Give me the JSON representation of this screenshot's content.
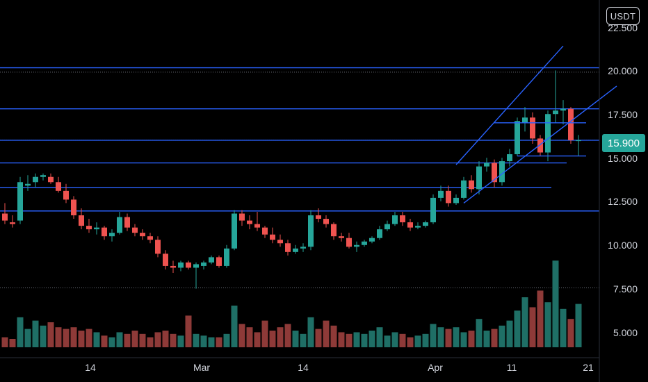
{
  "currency": "USDT",
  "last_price": "15.900",
  "colors": {
    "background": "#000000",
    "up": "#26a69a",
    "down": "#ef5350",
    "vol_up": "#1f6f66",
    "vol_down": "#8e3a38",
    "drawing": "#2962ff",
    "grid_dotted": "#6a6d78",
    "price_tag": "#26a69a",
    "axis_text": "#d1d4dc"
  },
  "chart_data": {
    "type": "candlestick",
    "y_ticks": [
      "5.000",
      "7.500",
      "10.000",
      "12.500",
      "15.000",
      "17.500",
      "20.000",
      "22.500"
    ],
    "x_ticks": [
      "14",
      "Mar",
      "14",
      "Apr",
      "11",
      "21"
    ],
    "ylim": [
      4.0,
      23.2
    ],
    "last_price": 15.9,
    "horizontal_levels": [
      20.05,
      17.7,
      15.9,
      14.6,
      13.2,
      11.85
    ],
    "dotted_levels": [
      19.8,
      15.9,
      11.85,
      7.45
    ],
    "bars": [
      {
        "date": "Jan 31",
        "o": 11.7,
        "h": 12.3,
        "l": 11.1,
        "c": 11.3,
        "v": 0.6
      },
      {
        "date": "Feb 1",
        "o": 11.2,
        "h": 11.6,
        "l": 10.9,
        "c": 11.1,
        "v": 0.5
      },
      {
        "date": "Feb 2",
        "o": 11.3,
        "h": 13.8,
        "l": 11.1,
        "c": 13.5,
        "v": 1.8
      },
      {
        "date": "Feb 3",
        "o": 13.3,
        "h": 13.9,
        "l": 13.0,
        "c": 13.4,
        "v": 1.1
      },
      {
        "date": "Feb 4",
        "o": 13.5,
        "h": 14.0,
        "l": 13.2,
        "c": 13.8,
        "v": 1.6
      },
      {
        "date": "Feb 5",
        "o": 13.8,
        "h": 14.0,
        "l": 13.6,
        "c": 13.9,
        "v": 1.3
      },
      {
        "date": "Feb 6",
        "o": 13.8,
        "h": 14.0,
        "l": 13.4,
        "c": 13.5,
        "v": 1.5
      },
      {
        "date": "Feb 7",
        "o": 13.5,
        "h": 13.8,
        "l": 12.9,
        "c": 13.0,
        "v": 1.2
      },
      {
        "date": "Feb 8",
        "o": 13.0,
        "h": 13.4,
        "l": 12.3,
        "c": 12.5,
        "v": 1.1
      },
      {
        "date": "Feb 9",
        "o": 12.5,
        "h": 12.7,
        "l": 11.4,
        "c": 11.6,
        "v": 1.2
      },
      {
        "date": "Feb 10",
        "o": 11.6,
        "h": 12.0,
        "l": 10.8,
        "c": 11.0,
        "v": 1.0
      },
      {
        "date": "Feb 11",
        "o": 11.0,
        "h": 11.4,
        "l": 10.6,
        "c": 10.8,
        "v": 1.1
      },
      {
        "date": "Feb 12",
        "o": 10.8,
        "h": 11.2,
        "l": 10.5,
        "c": 10.9,
        "v": 0.9
      },
      {
        "date": "Feb 13",
        "o": 10.9,
        "h": 11.0,
        "l": 10.2,
        "c": 10.4,
        "v": 0.7
      },
      {
        "date": "Feb 14",
        "o": 10.4,
        "h": 10.8,
        "l": 10.1,
        "c": 10.6,
        "v": 0.6
      },
      {
        "date": "Feb 15",
        "o": 10.6,
        "h": 11.8,
        "l": 10.5,
        "c": 11.5,
        "v": 0.9
      },
      {
        "date": "Feb 16",
        "o": 11.5,
        "h": 11.7,
        "l": 10.7,
        "c": 10.9,
        "v": 0.8
      },
      {
        "date": "Feb 17",
        "o": 10.9,
        "h": 11.1,
        "l": 10.4,
        "c": 10.6,
        "v": 1.0
      },
      {
        "date": "Feb 18",
        "o": 10.6,
        "h": 10.8,
        "l": 10.2,
        "c": 10.4,
        "v": 0.8
      },
      {
        "date": "Feb 19",
        "o": 10.4,
        "h": 10.6,
        "l": 10.0,
        "c": 10.2,
        "v": 0.6
      },
      {
        "date": "Feb 20",
        "o": 10.2,
        "h": 10.4,
        "l": 9.2,
        "c": 9.4,
        "v": 0.9
      },
      {
        "date": "Feb 21",
        "o": 9.4,
        "h": 9.6,
        "l": 8.5,
        "c": 8.7,
        "v": 1.0
      },
      {
        "date": "Feb 22",
        "o": 8.7,
        "h": 9.0,
        "l": 8.3,
        "c": 8.6,
        "v": 0.8
      },
      {
        "date": "Feb 23",
        "o": 8.6,
        "h": 9.0,
        "l": 8.4,
        "c": 8.9,
        "v": 0.7
      },
      {
        "date": "Feb 24",
        "o": 8.9,
        "h": 9.0,
        "l": 8.5,
        "c": 8.6,
        "v": 1.9
      },
      {
        "date": "Feb 25",
        "o": 8.6,
        "h": 8.9,
        "l": 7.4,
        "c": 8.8,
        "v": 0.8
      },
      {
        "date": "Feb 26",
        "o": 8.7,
        "h": 9.0,
        "l": 8.5,
        "c": 8.9,
        "v": 0.7
      },
      {
        "date": "Feb 27",
        "o": 8.9,
        "h": 9.3,
        "l": 8.8,
        "c": 9.2,
        "v": 0.6
      },
      {
        "date": "Feb 28",
        "o": 9.2,
        "h": 9.3,
        "l": 8.6,
        "c": 8.7,
        "v": 0.6
      },
      {
        "date": "Mar 1",
        "o": 8.7,
        "h": 9.9,
        "l": 8.6,
        "c": 9.7,
        "v": 0.8
      },
      {
        "date": "Mar 2",
        "o": 9.7,
        "h": 11.9,
        "l": 9.6,
        "c": 11.7,
        "v": 2.5
      },
      {
        "date": "Mar 3",
        "o": 11.7,
        "h": 11.9,
        "l": 11.0,
        "c": 11.3,
        "v": 1.4
      },
      {
        "date": "Mar 4",
        "o": 11.3,
        "h": 11.6,
        "l": 10.8,
        "c": 11.1,
        "v": 1.2
      },
      {
        "date": "Mar 5",
        "o": 11.1,
        "h": 11.8,
        "l": 10.7,
        "c": 10.9,
        "v": 0.9
      },
      {
        "date": "Mar 6",
        "o": 10.9,
        "h": 11.0,
        "l": 10.3,
        "c": 10.5,
        "v": 1.6
      },
      {
        "date": "Mar 7",
        "o": 10.5,
        "h": 10.9,
        "l": 10.0,
        "c": 10.2,
        "v": 1.0
      },
      {
        "date": "Mar 8",
        "o": 10.2,
        "h": 10.5,
        "l": 9.8,
        "c": 10.0,
        "v": 1.2
      },
      {
        "date": "Mar 9",
        "o": 10.0,
        "h": 10.2,
        "l": 9.3,
        "c": 9.5,
        "v": 1.4
      },
      {
        "date": "Mar 10",
        "o": 9.5,
        "h": 9.9,
        "l": 9.4,
        "c": 9.7,
        "v": 1.0
      },
      {
        "date": "Mar 11",
        "o": 9.7,
        "h": 10.0,
        "l": 9.5,
        "c": 9.8,
        "v": 0.8
      },
      {
        "date": "Mar 12",
        "o": 9.8,
        "h": 11.9,
        "l": 9.6,
        "c": 11.6,
        "v": 1.8
      },
      {
        "date": "Mar 13",
        "o": 11.6,
        "h": 12.0,
        "l": 11.2,
        "c": 11.4,
        "v": 1.1
      },
      {
        "date": "Mar 14",
        "o": 11.4,
        "h": 11.6,
        "l": 10.9,
        "c": 11.1,
        "v": 1.6
      },
      {
        "date": "Mar 15",
        "o": 11.1,
        "h": 11.2,
        "l": 10.2,
        "c": 10.4,
        "v": 1.3
      },
      {
        "date": "Mar 16",
        "o": 10.4,
        "h": 10.6,
        "l": 10.1,
        "c": 10.3,
        "v": 0.9
      },
      {
        "date": "Mar 17",
        "o": 10.3,
        "h": 10.6,
        "l": 9.7,
        "c": 9.8,
        "v": 0.8
      },
      {
        "date": "Mar 18",
        "o": 9.8,
        "h": 10.1,
        "l": 9.5,
        "c": 9.9,
        "v": 0.9
      },
      {
        "date": "Mar 19",
        "o": 9.9,
        "h": 10.2,
        "l": 9.8,
        "c": 10.1,
        "v": 0.8
      },
      {
        "date": "Mar 20",
        "o": 10.1,
        "h": 10.4,
        "l": 10.0,
        "c": 10.3,
        "v": 1.0
      },
      {
        "date": "Mar 21",
        "o": 10.3,
        "h": 11.0,
        "l": 10.2,
        "c": 10.8,
        "v": 1.2
      },
      {
        "date": "Mar 22",
        "o": 10.8,
        "h": 11.3,
        "l": 10.7,
        "c": 11.1,
        "v": 0.7
      },
      {
        "date": "Mar 23",
        "o": 11.1,
        "h": 11.8,
        "l": 11.0,
        "c": 11.6,
        "v": 0.9
      },
      {
        "date": "Mar 24",
        "o": 11.6,
        "h": 11.8,
        "l": 11.0,
        "c": 11.2,
        "v": 0.8
      },
      {
        "date": "Mar 25",
        "o": 11.2,
        "h": 11.4,
        "l": 10.7,
        "c": 10.9,
        "v": 0.6
      },
      {
        "date": "Mar 26",
        "o": 10.9,
        "h": 11.2,
        "l": 10.8,
        "c": 11.0,
        "v": 0.7
      },
      {
        "date": "Mar 27",
        "o": 11.0,
        "h": 11.3,
        "l": 10.9,
        "c": 11.2,
        "v": 0.8
      },
      {
        "date": "Mar 28",
        "o": 11.2,
        "h": 12.8,
        "l": 11.1,
        "c": 12.6,
        "v": 1.4
      },
      {
        "date": "Mar 29",
        "o": 12.6,
        "h": 13.3,
        "l": 12.4,
        "c": 13.0,
        "v": 1.2
      },
      {
        "date": "Mar 30",
        "o": 13.0,
        "h": 13.3,
        "l": 12.1,
        "c": 12.3,
        "v": 1.1
      },
      {
        "date": "Mar 31",
        "o": 12.3,
        "h": 12.8,
        "l": 12.2,
        "c": 12.6,
        "v": 1.2
      },
      {
        "date": "Apr 1",
        "o": 12.6,
        "h": 13.8,
        "l": 12.5,
        "c": 13.6,
        "v": 0.9
      },
      {
        "date": "Apr 2",
        "o": 13.6,
        "h": 13.9,
        "l": 12.9,
        "c": 13.1,
        "v": 1.0
      },
      {
        "date": "Apr 3",
        "o": 13.1,
        "h": 14.7,
        "l": 12.8,
        "c": 14.4,
        "v": 1.7
      },
      {
        "date": "Apr 4",
        "o": 14.4,
        "h": 14.9,
        "l": 14.1,
        "c": 14.6,
        "v": 1.0
      },
      {
        "date": "Apr 5",
        "o": 14.6,
        "h": 14.8,
        "l": 13.2,
        "c": 13.5,
        "v": 1.1
      },
      {
        "date": "Apr 6",
        "o": 13.5,
        "h": 14.9,
        "l": 13.3,
        "c": 14.7,
        "v": 1.3
      },
      {
        "date": "Apr 7",
        "o": 14.7,
        "h": 15.4,
        "l": 14.4,
        "c": 15.1,
        "v": 1.6
      },
      {
        "date": "Apr 8",
        "o": 15.1,
        "h": 17.2,
        "l": 15.0,
        "c": 17.0,
        "v": 2.2
      },
      {
        "date": "Apr 9",
        "o": 16.9,
        "h": 17.8,
        "l": 16.4,
        "c": 17.2,
        "v": 3.0
      },
      {
        "date": "Apr 10",
        "o": 17.2,
        "h": 17.5,
        "l": 15.7,
        "c": 16.0,
        "v": 2.4
      },
      {
        "date": "Apr 11",
        "o": 16.0,
        "h": 16.2,
        "l": 15.0,
        "c": 15.2,
        "v": 3.4
      },
      {
        "date": "Apr 12",
        "o": 15.2,
        "h": 17.6,
        "l": 14.7,
        "c": 17.4,
        "v": 2.7
      },
      {
        "date": "Apr 13",
        "o": 17.4,
        "h": 19.9,
        "l": 16.9,
        "c": 17.6,
        "v": 5.2
      },
      {
        "date": "Apr 14",
        "o": 17.6,
        "h": 18.2,
        "l": 16.8,
        "c": 17.7,
        "v": 2.3
      },
      {
        "date": "Apr 15",
        "o": 17.7,
        "h": 17.8,
        "l": 15.7,
        "c": 15.9,
        "v": 1.7
      },
      {
        "date": "Apr 16",
        "o": 15.9,
        "h": 16.2,
        "l": 15.0,
        "c": 15.9,
        "v": 2.6
      }
    ],
    "drawings": [
      {
        "type": "segment",
        "from": [
          "Mar 31",
          14.5
        ],
        "to": [
          "Apr 14",
          21.3
        ]
      },
      {
        "type": "segment",
        "from": [
          "Apr 1",
          12.3
        ],
        "to": [
          "Apr 21",
          19.0
        ]
      },
      {
        "type": "segment",
        "from": [
          "Apr 5",
          16.9
        ],
        "to": [
          "Apr 17",
          16.9
        ]
      },
      {
        "type": "segment",
        "from": [
          "Apr 8",
          15.0
        ],
        "to": [
          "Apr 17",
          15.0
        ]
      }
    ]
  }
}
